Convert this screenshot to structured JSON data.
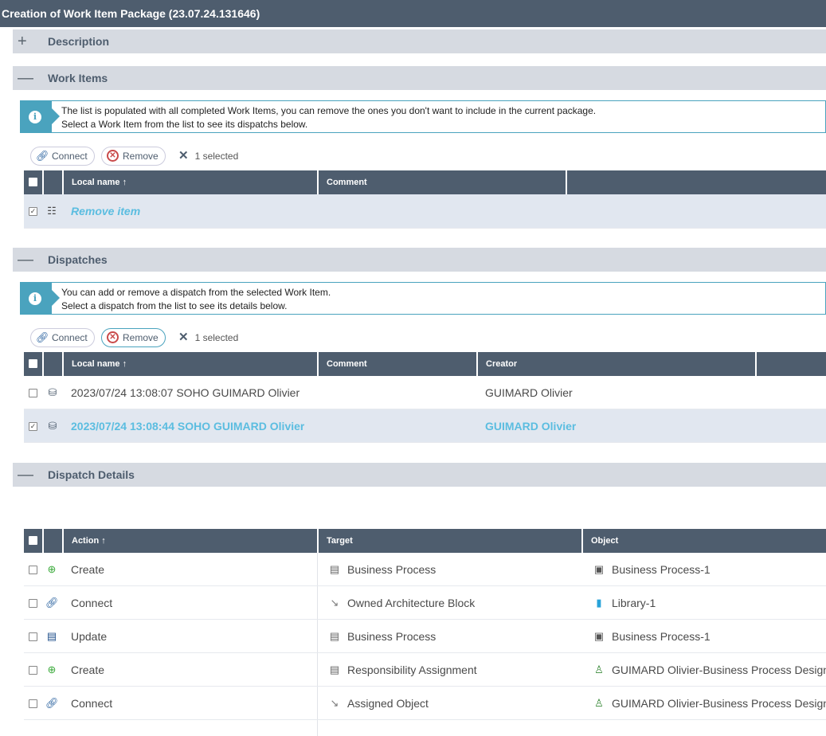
{
  "title": "Creation of Work Item Package (23.07.24.131646)",
  "sections": {
    "description": "Description",
    "work_items": "Work Items",
    "dispatches": "Dispatches",
    "dispatch_details": "Dispatch Details"
  },
  "work_items": {
    "info": [
      "The list is populated with all completed Work Items, you can remove the ones you don't want to include in the current package.",
      "Select a Work Item from the list to see its dispatchs below."
    ],
    "connect": "Connect",
    "remove": "Remove",
    "selected": "1 selected",
    "columns": [
      "Local name",
      "Comment"
    ],
    "rows": [
      {
        "name": "Remove item",
        "comment": "",
        "checked": true
      }
    ]
  },
  "dispatches": {
    "info": [
      "You can add or remove a dispatch from the selected Work Item.",
      "Select a dispatch from the list to see its details below."
    ],
    "connect": "Connect",
    "remove": "Remove",
    "selected": "1 selected",
    "columns": [
      "Local name",
      "Comment",
      "Creator"
    ],
    "rows": [
      {
        "name": "2023/07/24 13:08:07 SOHO GUIMARD Olivier",
        "comment": "",
        "creator": "GUIMARD Olivier",
        "checked": false
      },
      {
        "name": "2023/07/24 13:08:44 SOHO GUIMARD Olivier",
        "comment": "",
        "creator": "GUIMARD Olivier",
        "checked": true
      }
    ]
  },
  "details": {
    "columns": [
      "Action",
      "Target",
      "Object"
    ],
    "rows": [
      {
        "action": "Create",
        "action_icon": "plus-circle",
        "target": "Business Process",
        "target_icon": "class",
        "object": "Business Process-1",
        "object_icon": "process"
      },
      {
        "action": "Connect",
        "action_icon": "link",
        "target": "Owned Architecture Block",
        "target_icon": "relation",
        "object": "Library-1",
        "object_icon": "library"
      },
      {
        "action": "Update",
        "action_icon": "comment",
        "target": "Business Process",
        "target_icon": "class",
        "object": "Business Process-1",
        "object_icon": "process"
      },
      {
        "action": "Create",
        "action_icon": "plus-circle",
        "target": "Responsibility Assignment",
        "target_icon": "class",
        "object": "GUIMARD Olivier-Business Process Design",
        "object_icon": "person"
      },
      {
        "action": "Connect",
        "action_icon": "link",
        "target": "Assigned Object",
        "target_icon": "relation",
        "object": "GUIMARD Olivier-Business Process Design",
        "object_icon": "person"
      }
    ]
  }
}
